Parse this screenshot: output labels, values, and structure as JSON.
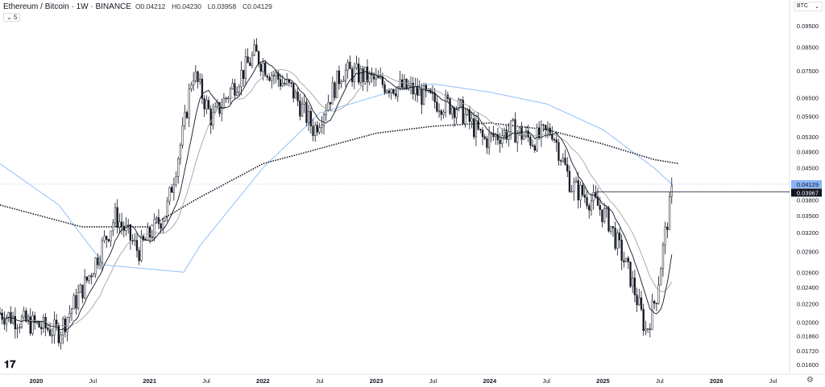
{
  "header": {
    "title": "Ethereum / Bitcoin · 1W · BINANCE",
    "open": "O0.04212",
    "high": "H0.04230",
    "low": "L0.03958",
    "close": "C0.04129",
    "indicators_toggle": "5",
    "currency": "BTC"
  },
  "colors": {
    "candle": "#131722",
    "blue_ma": "#90bff9",
    "gray_ma": "#a3a3a3",
    "last_price": "#8ab4f8",
    "crosshair": "#131722"
  },
  "chart_data": {
    "type": "candlestick",
    "title": "Ethereum / Bitcoin · 1W · BINANCE",
    "y_scale": "log",
    "ylim": [
      0.016,
      0.095
    ],
    "yticks": [
      "0.09500",
      "0.08500",
      "0.07500",
      "0.06500",
      "0.05900",
      "0.05300",
      "0.04900",
      "0.04500",
      "0.03800",
      "0.03500",
      "0.03200",
      "0.02900",
      "0.02600",
      "0.02400",
      "0.02200",
      "0.02000",
      "0.01860",
      "0.01720",
      "0.01600"
    ],
    "xticks": [
      {
        "label": "2020",
        "t": 2020.0
      },
      {
        "label": "Jul",
        "t": 2020.5
      },
      {
        "label": "2021",
        "t": 2021.0
      },
      {
        "label": "Jul",
        "t": 2021.5
      },
      {
        "label": "2022",
        "t": 2022.0
      },
      {
        "label": "Jul",
        "t": 2022.5
      },
      {
        "label": "2023",
        "t": 2023.0
      },
      {
        "label": "Jul",
        "t": 2023.5
      },
      {
        "label": "2024",
        "t": 2024.0
      },
      {
        "label": "Jul",
        "t": 2024.5
      },
      {
        "label": "2025",
        "t": 2025.0
      },
      {
        "label": "Jul",
        "t": 2025.5
      },
      {
        "label": "2026",
        "t": 2026.0
      },
      {
        "label": "Jul",
        "t": 2026.5
      }
    ],
    "price_path": [
      [
        2019.68,
        0.021
      ],
      [
        2019.9,
        0.02
      ],
      [
        2020.2,
        0.019
      ],
      [
        2020.45,
        0.025
      ],
      [
        2020.7,
        0.035
      ],
      [
        2020.9,
        0.029
      ],
      [
        2021.05,
        0.033
      ],
      [
        2021.15,
        0.036
      ],
      [
        2021.3,
        0.055
      ],
      [
        2021.38,
        0.075
      ],
      [
        2021.55,
        0.058
      ],
      [
        2021.75,
        0.07
      ],
      [
        2021.93,
        0.082
      ],
      [
        2022.05,
        0.075
      ],
      [
        2022.25,
        0.068
      ],
      [
        2022.45,
        0.055
      ],
      [
        2022.7,
        0.075
      ],
      [
        2022.88,
        0.073
      ],
      [
        2023.05,
        0.07
      ],
      [
        2023.3,
        0.068
      ],
      [
        2023.5,
        0.064
      ],
      [
        2023.72,
        0.062
      ],
      [
        2023.95,
        0.052
      ],
      [
        2024.2,
        0.055
      ],
      [
        2024.38,
        0.052
      ],
      [
        2024.55,
        0.055
      ],
      [
        2024.72,
        0.041
      ],
      [
        2024.95,
        0.037
      ],
      [
        2025.05,
        0.034
      ],
      [
        2025.25,
        0.025
      ],
      [
        2025.38,
        0.019
      ],
      [
        2025.47,
        0.023
      ],
      [
        2025.55,
        0.032
      ],
      [
        2025.62,
        0.0413
      ]
    ],
    "blue_ma": [
      [
        2019.68,
        0.046
      ],
      [
        2020.2,
        0.037
      ],
      [
        2020.6,
        0.027
      ],
      [
        2021.3,
        0.026
      ],
      [
        2021.45,
        0.03
      ],
      [
        2022.0,
        0.045
      ],
      [
        2022.5,
        0.06
      ],
      [
        2023.2,
        0.068
      ],
      [
        2023.5,
        0.07
      ],
      [
        2024.0,
        0.067
      ],
      [
        2024.5,
        0.063
      ],
      [
        2025.0,
        0.055
      ],
      [
        2025.45,
        0.045
      ],
      [
        2025.62,
        0.041
      ]
    ],
    "dotted_ma": [
      [
        2019.68,
        0.037
      ],
      [
        2020.4,
        0.033
      ],
      [
        2021.0,
        0.033
      ],
      [
        2021.4,
        0.038
      ],
      [
        2022.0,
        0.046
      ],
      [
        2022.4,
        0.049
      ],
      [
        2023.0,
        0.054
      ],
      [
        2023.5,
        0.056
      ],
      [
        2024.0,
        0.057
      ],
      [
        2024.5,
        0.055
      ],
      [
        2025.0,
        0.051
      ],
      [
        2025.45,
        0.047
      ],
      [
        2025.67,
        0.046
      ]
    ],
    "last_price": "0.04129",
    "crosshair_price": "0.03967"
  }
}
